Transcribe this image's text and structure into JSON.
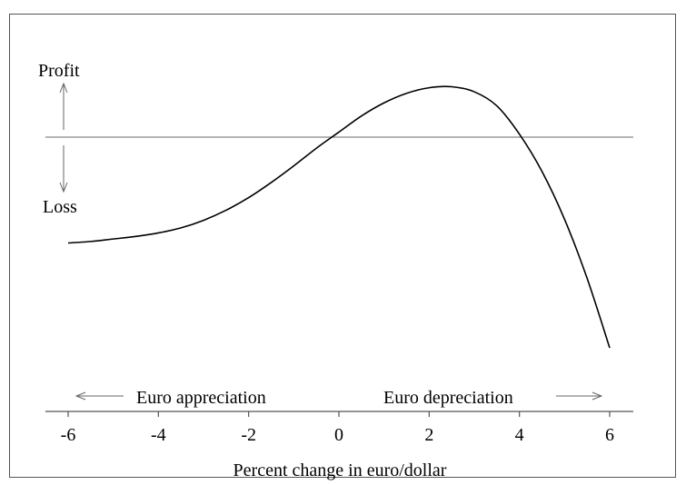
{
  "chart_data": {
    "type": "line",
    "title": "",
    "xlabel": "Percent change in euro/dollar",
    "ylabel": "",
    "xlim": [
      -6,
      6
    ],
    "ylim": [
      -4.5,
      1.2
    ],
    "x_ticks": [
      "-6",
      "-4",
      "-2",
      "0",
      "2",
      "4",
      "6"
    ],
    "grid": false,
    "legend": "none",
    "y_direction_labels": {
      "up": "Profit",
      "down": "Loss"
    },
    "x_direction_labels": {
      "left": "Euro appreciation",
      "right": "Euro depreciation"
    },
    "reference_line_y": 0,
    "series": [
      {
        "x": [
          -6,
          -5.5,
          -5,
          -4.5,
          -4,
          -3.5,
          -3,
          -2.5,
          -2,
          -1.5,
          -1,
          -0.5,
          0,
          0.5,
          1,
          1.5,
          2,
          2.5,
          3,
          3.5,
          4,
          4.5,
          5,
          5.5,
          6
        ],
        "y": [
          -2.1,
          -2.07,
          -2.02,
          -1.97,
          -1.9,
          -1.8,
          -1.65,
          -1.45,
          -1.2,
          -0.9,
          -0.57,
          -0.22,
          0.1,
          0.42,
          0.68,
          0.87,
          0.98,
          1.0,
          0.9,
          0.62,
          0.06,
          -0.68,
          -1.63,
          -2.8,
          -4.18
        ]
      }
    ],
    "colors": {
      "line": "#000000",
      "reference": "#888888",
      "axis": "#555555",
      "frame": "#555555"
    }
  }
}
